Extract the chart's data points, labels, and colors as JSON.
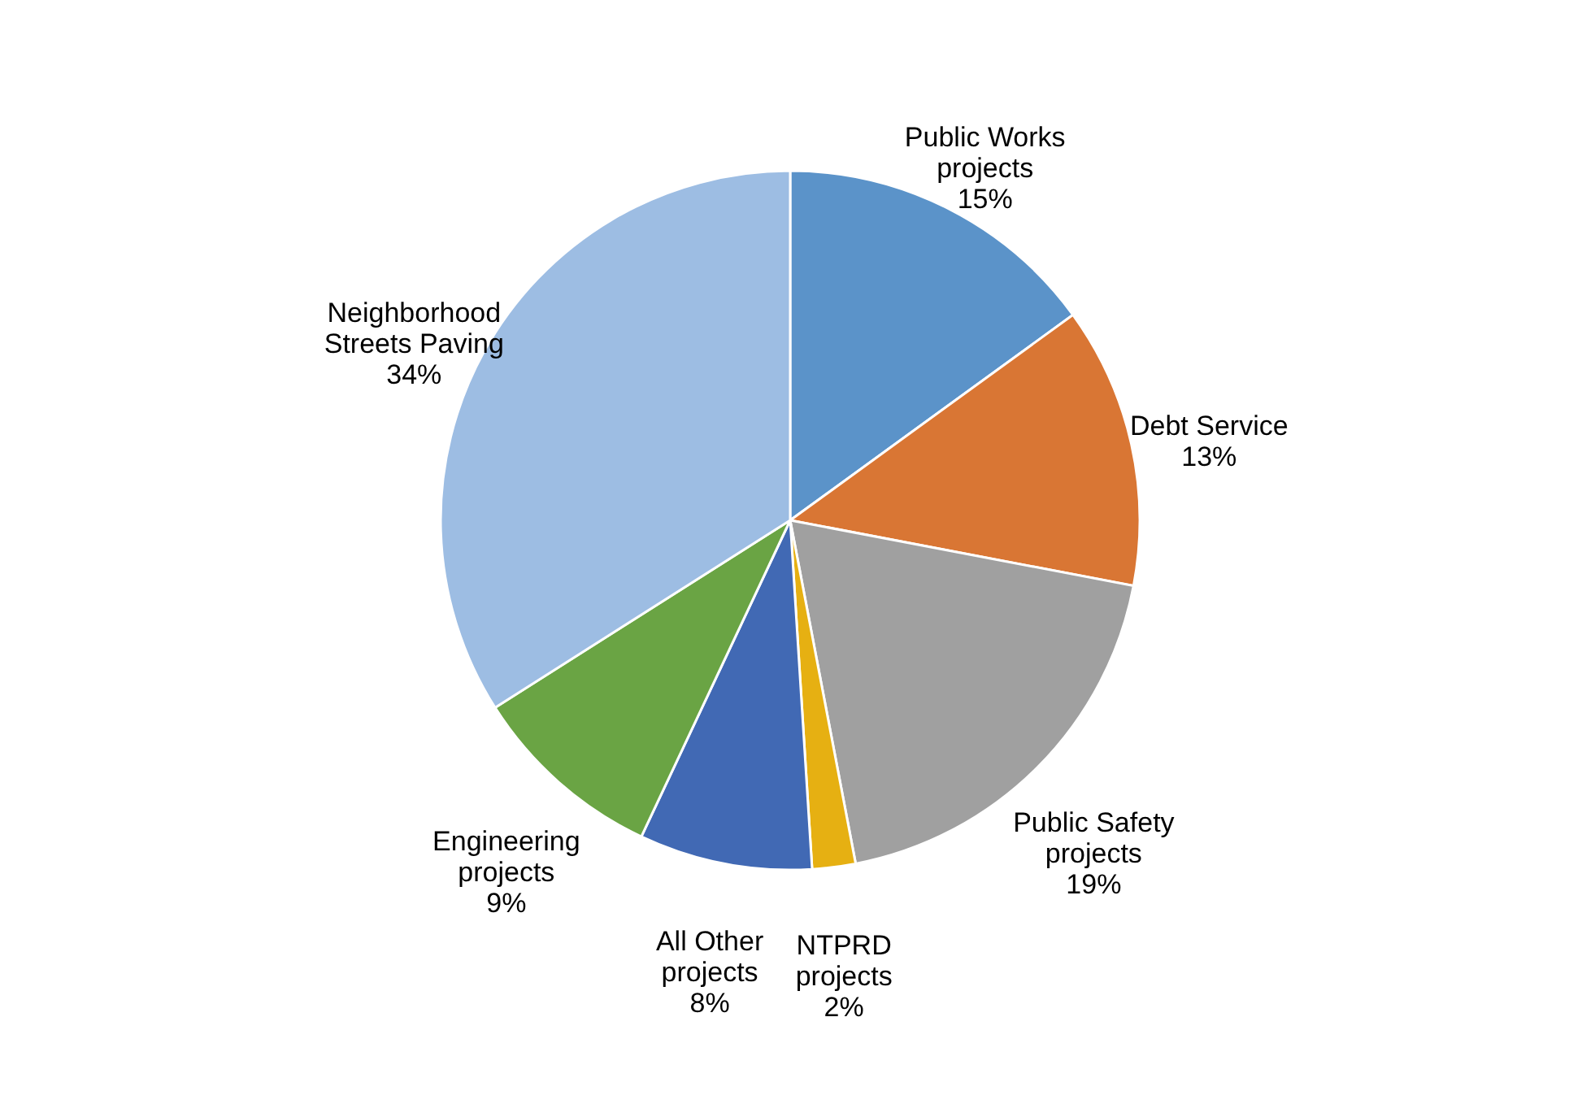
{
  "chart_data": {
    "type": "pie",
    "categories": [
      "Public Works projects",
      "Debt Service",
      "Public Safety projects",
      "NTPRD projects",
      "All Other projects",
      "Engineering projects",
      "Neighborhood Streets Paving"
    ],
    "values": [
      15,
      13,
      19,
      2,
      8,
      9,
      34
    ],
    "colors": [
      "#5b93c9",
      "#d97634",
      "#a0a0a0",
      "#e6b012",
      "#4169b4",
      "#6aa444",
      "#9dbde3"
    ],
    "value_labels": [
      "15%",
      "13%",
      "19%",
      "2%",
      "8%",
      "9%",
      "34%"
    ],
    "legend": false
  }
}
